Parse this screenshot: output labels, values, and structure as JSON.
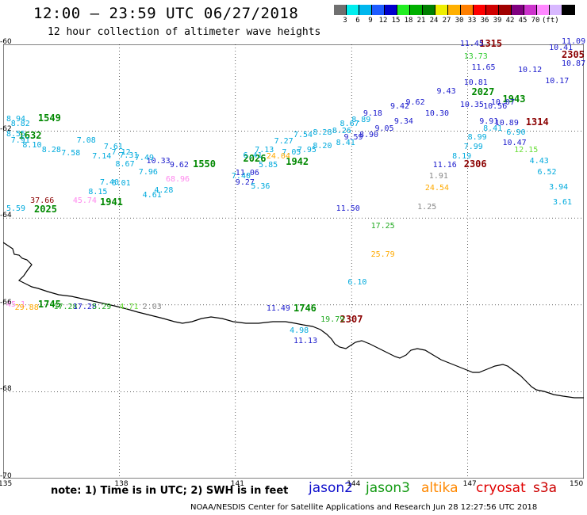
{
  "header": {
    "title": "12:00 – 23:59 UTC 06/27/2018",
    "subtitle": "12 hour collection of altimeter wave heights"
  },
  "scale": {
    "colors": [
      "#707070",
      "#00eeee",
      "#00b7ee",
      "#1e5cff",
      "#0000cc",
      "#22ee22",
      "#00b000",
      "#008000",
      "#eeee00",
      "#ffb000",
      "#ff7f00",
      "#ff0000",
      "#d00000",
      "#a00000",
      "#800080",
      "#cc33cc",
      "#ff88ff",
      "#d8b8ff",
      "#000000"
    ],
    "labels": [
      "3",
      "6",
      "9",
      "12",
      "15",
      "18",
      "21",
      "24",
      "27",
      "30",
      "33",
      "36",
      "39",
      "42",
      "45",
      "70",
      "(ft)"
    ]
  },
  "axes": {
    "x_ticks": [
      "135",
      "138",
      "141",
      "144",
      "147",
      "150"
    ],
    "y_ticks": [
      "-60",
      "-62",
      "-64",
      "-66",
      "-68",
      "-70"
    ]
  },
  "observations": [
    {
      "t": "1315",
      "c": "#8b0000",
      "time": true,
      "lon": 147.3,
      "lat": -60.0
    },
    {
      "t": "2305",
      "c": "#8b0000",
      "time": true,
      "lon": 149.5,
      "lat": -60.25
    },
    {
      "t": "11.45",
      "c": "#1a1acc",
      "lon": 146.8,
      "lat": -60.0
    },
    {
      "t": "13.73",
      "c": "#33cc33",
      "lon": 146.9,
      "lat": -60.3
    },
    {
      "t": "11.65",
      "c": "#1a1acc",
      "lon": 147.1,
      "lat": -60.55
    },
    {
      "t": "11.09",
      "c": "#1a1acc",
      "lon": 149.6,
      "lat": -59.95
    },
    {
      "t": "10.41",
      "c": "#1a1acc",
      "lon": 149.1,
      "lat": -60.1
    },
    {
      "t": "10.87",
      "c": "#1a1acc",
      "lon": 149.8,
      "lat": -60.45
    },
    {
      "t": "10.12",
      "c": "#1a1acc",
      "lon": 148.3,
      "lat": -60.6
    },
    {
      "t": "10.17",
      "c": "#1a1acc",
      "lon": 149.0,
      "lat": -60.85
    },
    {
      "t": "2027",
      "c": "#008800",
      "time": true,
      "lon": 147.1,
      "lat": -61.12
    },
    {
      "t": "1943",
      "c": "#008800",
      "time": true,
      "lon": 147.9,
      "lat": -61.28
    },
    {
      "t": "1314",
      "c": "#8b0000",
      "time": true,
      "lon": 148.5,
      "lat": -61.8
    },
    {
      "t": "10.81",
      "c": "#1a1acc",
      "lon": 146.9,
      "lat": -60.9
    },
    {
      "t": "9.43",
      "c": "#1a1acc",
      "lon": 146.2,
      "lat": -61.1
    },
    {
      "t": "10.35",
      "c": "#1a1acc",
      "lon": 146.8,
      "lat": -61.4
    },
    {
      "t": "10.56",
      "c": "#1a1acc",
      "lon": 147.4,
      "lat": -61.45
    },
    {
      "t": "10.07",
      "c": "#1a1acc",
      "lon": 147.6,
      "lat": -61.35
    },
    {
      "t": "9.91",
      "c": "#1a1acc",
      "lon": 147.3,
      "lat": -61.78
    },
    {
      "t": "10.89",
      "c": "#1a1acc",
      "lon": 147.7,
      "lat": -61.83
    },
    {
      "t": "10.47",
      "c": "#1a1acc",
      "lon": 147.9,
      "lat": -62.28
    },
    {
      "t": "9.18",
      "c": "#1a1acc",
      "lon": 144.3,
      "lat": -61.6
    },
    {
      "t": "9.42",
      "c": "#1a1acc",
      "lon": 145.0,
      "lat": -61.45
    },
    {
      "t": "9.62",
      "c": "#1a1acc",
      "lon": 145.4,
      "lat": -61.35
    },
    {
      "t": "10.30",
      "c": "#1a1acc",
      "lon": 145.9,
      "lat": -61.6
    },
    {
      "t": "9.34",
      "c": "#1a1acc",
      "lon": 145.1,
      "lat": -61.78
    },
    {
      "t": "9.05",
      "c": "#1a1acc",
      "lon": 144.6,
      "lat": -61.95
    },
    {
      "t": "9.59",
      "c": "#1a1acc",
      "lon": 143.8,
      "lat": -62.15
    },
    {
      "t": "8.90",
      "c": "#1a1acc",
      "lon": 144.2,
      "lat": -62.1
    },
    {
      "t": "10.33",
      "c": "#1a1acc",
      "lon": 138.7,
      "lat": -62.7
    },
    {
      "t": "9.62",
      "c": "#1a1acc",
      "lon": 139.3,
      "lat": -62.8
    },
    {
      "t": "11.06",
      "c": "#1a1acc",
      "lon": 141.0,
      "lat": -62.97
    },
    {
      "t": "9.27",
      "c": "#1a1acc",
      "lon": 141.0,
      "lat": -63.2
    },
    {
      "t": "11.50",
      "c": "#1a1acc",
      "lon": 143.6,
      "lat": -63.8
    },
    {
      "t": "11.16",
      "c": "#1a1acc",
      "lon": 146.1,
      "lat": -62.8
    },
    {
      "t": "11.49",
      "c": "#1a1acc",
      "lon": 141.8,
      "lat": -66.1
    },
    {
      "t": "11.13",
      "c": "#1a1acc",
      "lon": 142.5,
      "lat": -66.85
    },
    {
      "t": "1549",
      "c": "#008800",
      "time": true,
      "lon": 135.9,
      "lat": -61.72
    },
    {
      "t": "1632",
      "c": "#008800",
      "time": true,
      "lon": 135.4,
      "lat": -62.12
    },
    {
      "t": "2025",
      "c": "#008800",
      "time": true,
      "lon": 135.8,
      "lat": -63.82
    },
    {
      "t": "1941",
      "c": "#008800",
      "time": true,
      "lon": 137.5,
      "lat": -63.65
    },
    {
      "t": "1550",
      "c": "#008800",
      "time": true,
      "lon": 139.9,
      "lat": -62.78
    },
    {
      "t": "2026",
      "c": "#008800",
      "time": true,
      "lon": 141.2,
      "lat": -62.65
    },
    {
      "t": "1942",
      "c": "#008800",
      "time": true,
      "lon": 142.3,
      "lat": -62.72
    },
    {
      "t": "1745",
      "c": "#008800",
      "time": true,
      "lon": 135.9,
      "lat": -66.0
    },
    {
      "t": "1746",
      "c": "#008800",
      "time": true,
      "lon": 142.5,
      "lat": -66.1
    },
    {
      "t": "2306",
      "c": "#8b0000",
      "time": true,
      "lon": 146.9,
      "lat": -62.78
    },
    {
      "t": "2307",
      "c": "#8b0000",
      "time": true,
      "lon": 143.7,
      "lat": -66.35
    },
    {
      "t": "37.66",
      "c": "#8b0000",
      "lon": 135.7,
      "lat": -63.62
    },
    {
      "t": "8.94",
      "c": "#00aadd",
      "lon": 134.9,
      "lat": -61.74
    },
    {
      "t": "8.82",
      "c": "#00aadd",
      "lon": 135.2,
      "lat": -61.85
    },
    {
      "t": "8.55",
      "c": "#00aadd",
      "lon": 134.9,
      "lat": -62.08
    },
    {
      "t": "7.91",
      "c": "#00aadd",
      "lon": 135.2,
      "lat": -62.23
    },
    {
      "t": "8.10",
      "c": "#00aadd",
      "lon": 135.5,
      "lat": -62.34
    },
    {
      "t": "8.28",
      "c": "#00aadd",
      "lon": 136.0,
      "lat": -62.44
    },
    {
      "t": "7.58",
      "c": "#00aadd",
      "lon": 136.5,
      "lat": -62.52
    },
    {
      "t": "7.08",
      "c": "#00aadd",
      "lon": 136.9,
      "lat": -62.22
    },
    {
      "t": "7.14",
      "c": "#00aadd",
      "lon": 137.3,
      "lat": -62.6
    },
    {
      "t": "7.61",
      "c": "#00aadd",
      "lon": 137.6,
      "lat": -62.38
    },
    {
      "t": "7.12",
      "c": "#00aadd",
      "lon": 137.8,
      "lat": -62.5
    },
    {
      "t": "7.31",
      "c": "#00aadd",
      "lon": 138.0,
      "lat": -62.58
    },
    {
      "t": "7.49",
      "c": "#00aadd",
      "lon": 138.4,
      "lat": -62.62
    },
    {
      "t": "8.67",
      "c": "#00aadd",
      "lon": 137.9,
      "lat": -62.78
    },
    {
      "t": "7.96",
      "c": "#00aadd",
      "lon": 138.5,
      "lat": -62.96
    },
    {
      "t": "7.40",
      "c": "#00aadd",
      "lon": 137.5,
      "lat": -63.2
    },
    {
      "t": "8.15",
      "c": "#00aadd",
      "lon": 137.2,
      "lat": -63.42
    },
    {
      "t": "6.01",
      "c": "#00aadd",
      "lon": 137.8,
      "lat": -63.22
    },
    {
      "t": "4.28",
      "c": "#00aadd",
      "lon": 138.9,
      "lat": -63.37
    },
    {
      "t": "4.61",
      "c": "#00aadd",
      "lon": 138.6,
      "lat": -63.48
    },
    {
      "t": "7.40",
      "c": "#00aadd",
      "lon": 140.9,
      "lat": -63.05
    },
    {
      "t": "6.41",
      "c": "#00aadd",
      "lon": 141.2,
      "lat": -62.58
    },
    {
      "t": "7.13",
      "c": "#00aadd",
      "lon": 141.5,
      "lat": -62.44
    },
    {
      "t": "7.27",
      "c": "#00aadd",
      "lon": 142.0,
      "lat": -62.24
    },
    {
      "t": "7.54",
      "c": "#00aadd",
      "lon": 142.5,
      "lat": -62.1
    },
    {
      "t": "8.28",
      "c": "#00aadd",
      "lon": 143.0,
      "lat": -62.05
    },
    {
      "t": "8.26",
      "c": "#00aadd",
      "lon": 143.5,
      "lat": -62.0
    },
    {
      "t": "8.67",
      "c": "#00aadd",
      "lon": 143.7,
      "lat": -61.85
    },
    {
      "t": "8.89",
      "c": "#00aadd",
      "lon": 144.0,
      "lat": -61.75
    },
    {
      "t": "8.41",
      "c": "#00aadd",
      "lon": 143.6,
      "lat": -62.28
    },
    {
      "t": "8.20",
      "c": "#00aadd",
      "lon": 143.0,
      "lat": -62.35
    },
    {
      "t": "7.95",
      "c": "#00aadd",
      "lon": 142.6,
      "lat": -62.45
    },
    {
      "t": "7.05",
      "c": "#00aadd",
      "lon": 142.2,
      "lat": -62.5
    },
    {
      "t": "5.36",
      "c": "#00aadd",
      "lon": 141.4,
      "lat": -63.28
    },
    {
      "t": "5.85",
      "c": "#00aadd",
      "lon": 141.6,
      "lat": -62.8
    },
    {
      "t": "5.59",
      "c": "#00aadd",
      "lon": 134.9,
      "lat": -63.8
    },
    {
      "t": "8.41",
      "c": "#00aadd",
      "lon": 147.4,
      "lat": -61.95
    },
    {
      "t": "8.99",
      "c": "#00aadd",
      "lon": 147.0,
      "lat": -62.15
    },
    {
      "t": "7.99",
      "c": "#00aadd",
      "lon": 146.9,
      "lat": -62.38
    },
    {
      "t": "8.19",
      "c": "#00aadd",
      "lon": 146.6,
      "lat": -62.6
    },
    {
      "t": "6.90",
      "c": "#00aadd",
      "lon": 148.0,
      "lat": -62.05
    },
    {
      "t": "4.43",
      "c": "#00aadd",
      "lon": 148.6,
      "lat": -62.7
    },
    {
      "t": "6.52",
      "c": "#00aadd",
      "lon": 148.8,
      "lat": -62.95
    },
    {
      "t": "3.94",
      "c": "#00aadd",
      "lon": 149.1,
      "lat": -63.3
    },
    {
      "t": "3.61",
      "c": "#00aadd",
      "lon": 149.2,
      "lat": -63.65
    },
    {
      "t": "6.10",
      "c": "#00aadd",
      "lon": 143.9,
      "lat": -65.5
    },
    {
      "t": "4.98",
      "c": "#00aadd",
      "lon": 142.4,
      "lat": -66.6
    },
    {
      "t": "12.15",
      "c": "#66dd33",
      "lon": 148.2,
      "lat": -62.45
    },
    {
      "t": "17.25",
      "c": "#22aa22",
      "lon": 144.5,
      "lat": -64.2
    },
    {
      "t": "19.79",
      "c": "#22aa22",
      "lon": 143.2,
      "lat": -66.35
    },
    {
      "t": "24.54",
      "c": "#ffaa00",
      "lon": 145.9,
      "lat": -63.32
    },
    {
      "t": "25.79",
      "c": "#ffaa00",
      "lon": 144.5,
      "lat": -64.85
    },
    {
      "t": "24.04",
      "c": "#ffaa00",
      "lon": 141.8,
      "lat": -62.6
    },
    {
      "t": "1.91",
      "c": "#888888",
      "lon": 146.0,
      "lat": -63.05
    },
    {
      "t": "1.25",
      "c": "#888888",
      "lon": 145.7,
      "lat": -63.75
    },
    {
      "t": "2.03",
      "c": "#888888",
      "lon": 138.6,
      "lat": -66.05
    },
    {
      "t": "45.74",
      "c": "#ff88ee",
      "lon": 136.8,
      "lat": -63.62
    },
    {
      "t": "68.96",
      "c": "#ff88ee",
      "lon": 139.2,
      "lat": -63.12
    },
    {
      "t": "45.1",
      "c": "#ff88ee",
      "lon": 134.6,
      "lat": -66.0
    },
    {
      "t": "29.88",
      "c": "#ffaa00",
      "lon": 135.3,
      "lat": -66.07
    },
    {
      "t": "17.28",
      "c": "#22aa22",
      "lon": 136.3,
      "lat": -66.05
    },
    {
      "t": "17.28",
      "c": "#1a1acc",
      "lon": 136.8,
      "lat": -66.05
    },
    {
      "t": "5.29",
      "c": "#22aa22",
      "lon": 137.3,
      "lat": -66.05
    },
    {
      "t": "4.71",
      "c": "#66dd33",
      "lon": 138.0,
      "lat": -66.05
    }
  ],
  "legend": {
    "note": "note: 1) Time is in UTC; 2) SWH is in feet",
    "items": [
      {
        "label": "jason2",
        "color": "#1010cc"
      },
      {
        "label": "jason3",
        "color": "#119911"
      },
      {
        "label": "altika",
        "color": "#ff8800"
      },
      {
        "label": "cryosat",
        "color": "#e00000"
      },
      {
        "label": "s3a",
        "color": "#cc0000"
      }
    ]
  },
  "credit": "NOAA/NESDIS Center for Satellite Applications and Research    Jun 28 12:27:56 UTC 2018"
}
